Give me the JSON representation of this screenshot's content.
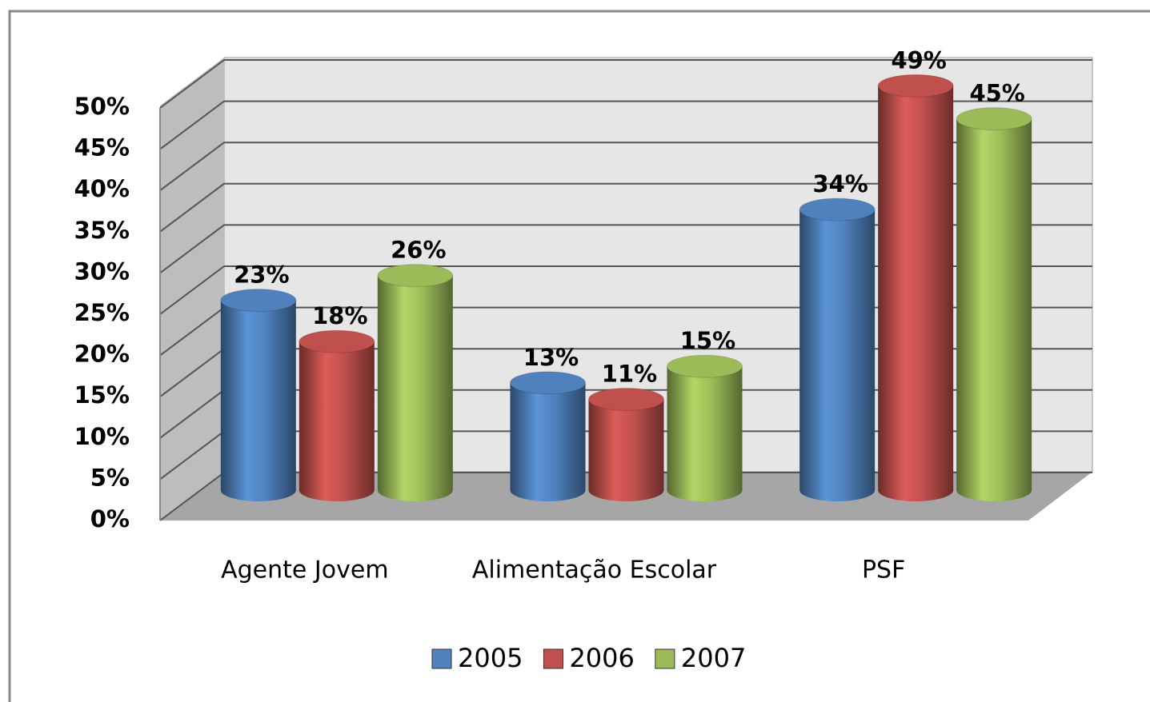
{
  "chart_data": {
    "type": "bar3d",
    "categories": [
      "Agente Jovem",
      "Alimentação Escolar",
      "PSF"
    ],
    "series": [
      {
        "name": "2005",
        "color": "#4f81bd",
        "values": [
          23,
          13,
          34
        ],
        "value_labels": [
          "23%",
          "13%",
          "34%"
        ]
      },
      {
        "name": "2006",
        "color": "#c0504d",
        "values": [
          18,
          11,
          49
        ],
        "value_labels": [
          "18%",
          "11%",
          "49%"
        ]
      },
      {
        "name": "2007",
        "color": "#9bbb59",
        "values": [
          26,
          15,
          45
        ],
        "value_labels": [
          "26%",
          "15%",
          "45%"
        ]
      }
    ],
    "ylim": [
      0,
      50
    ],
    "yticks": [
      {
        "value": 0,
        "label": "0%"
      },
      {
        "value": 5,
        "label": "5%"
      },
      {
        "value": 10,
        "label": "10%"
      },
      {
        "value": 15,
        "label": "15%"
      },
      {
        "value": 20,
        "label": "20%"
      },
      {
        "value": 25,
        "label": "25%"
      },
      {
        "value": 30,
        "label": "30%"
      },
      {
        "value": 35,
        "label": "35%"
      },
      {
        "value": 40,
        "label": "40%"
      },
      {
        "value": 45,
        "label": "45%"
      },
      {
        "value": 50,
        "label": "50%"
      }
    ],
    "grid": true,
    "legend": "bottom"
  }
}
